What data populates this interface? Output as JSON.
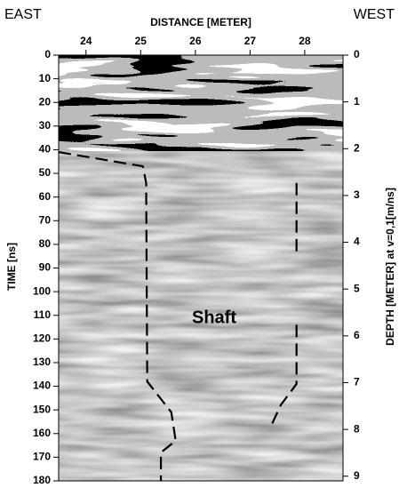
{
  "chart_data": {
    "type": "radargram",
    "x_label": "DISTANCE [METER]",
    "y_label": "TIME [ns]",
    "y2_label": "DEPTH [METER] at v=0,1[m/ns]",
    "annotations": [
      "EAST",
      "WEST",
      "Shaft"
    ],
    "xlim": [
      23.5,
      28.7
    ],
    "xticks": [
      24,
      25,
      26,
      27,
      28
    ],
    "ylim": [
      0,
      180
    ],
    "yticks": [
      0,
      10,
      20,
      30,
      40,
      50,
      60,
      70,
      80,
      90,
      100,
      110,
      120,
      130,
      140,
      150,
      160,
      170,
      180
    ],
    "y2lim": [
      0,
      9.1
    ],
    "y2ticks": [
      0,
      1,
      2,
      3,
      4,
      5,
      6,
      7,
      8,
      9
    ],
    "series": [
      {
        "color": "#000000",
        "x": [
          23.5,
          25.04,
          25.1,
          25.12,
          25.56,
          25.64,
          25.37,
          25.37
        ],
        "values": [
          41,
          47,
          54,
          138,
          151,
          163,
          168,
          180
        ]
      },
      {
        "color": "#000000",
        "x": [
          27.85,
          27.85
        ],
        "values": [
          54,
          83
        ]
      },
      {
        "color": "#000000",
        "x": [
          27.85,
          27.85,
          27.56,
          27.4
        ],
        "values": [
          114,
          139,
          148,
          156
        ]
      }
    ]
  }
}
